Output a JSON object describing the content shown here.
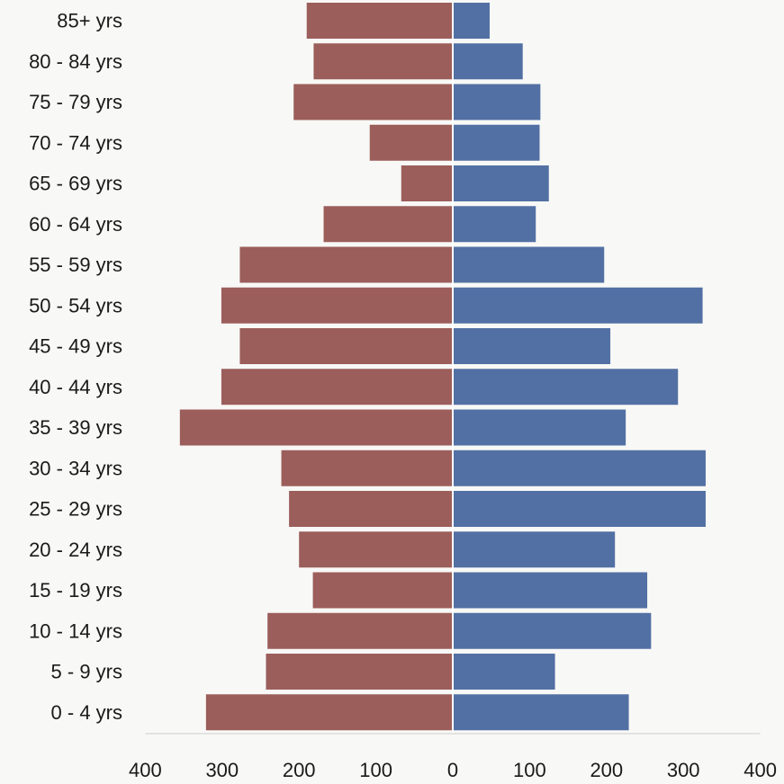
{
  "chart_data": {
    "type": "bar",
    "orientation": "horizontal",
    "layout": "population-pyramid",
    "categories": [
      "85+ yrs",
      "80 - 84 yrs",
      "75 - 79 yrs",
      "70 - 74 yrs",
      "65 - 69 yrs",
      "60 - 64 yrs",
      "55 - 59 yrs",
      "50 - 54 yrs",
      "45 - 49 yrs",
      "40 - 44 yrs",
      "35 - 39 yrs",
      "30 - 34 yrs",
      "25 - 29 yrs",
      "20 - 24 yrs",
      "15 - 19 yrs",
      "10 - 14 yrs",
      "5 - 9 yrs",
      "0 - 4 yrs"
    ],
    "series": [
      {
        "side": "left",
        "color": "#9b5e5b",
        "values": [
          190,
          181,
          207,
          108,
          67,
          168,
          277,
          301,
          277,
          301,
          355,
          223,
          213,
          200,
          182,
          241,
          243,
          321
        ]
      },
      {
        "side": "right",
        "color": "#5270a3",
        "values": [
          48,
          91,
          114,
          113,
          125,
          108,
          197,
          325,
          205,
          293,
          225,
          329,
          329,
          211,
          253,
          258,
          133,
          229
        ]
      }
    ],
    "xlim": [
      -400,
      400
    ],
    "xticks": [
      -400,
      -300,
      -200,
      -100,
      0,
      100,
      200,
      300,
      400
    ],
    "xtick_labels": [
      "400",
      "300",
      "200",
      "100",
      "0",
      "100",
      "200",
      "300",
      "400"
    ],
    "title": "",
    "xlabel": "",
    "ylabel": "",
    "grid": false,
    "legend": "none"
  }
}
